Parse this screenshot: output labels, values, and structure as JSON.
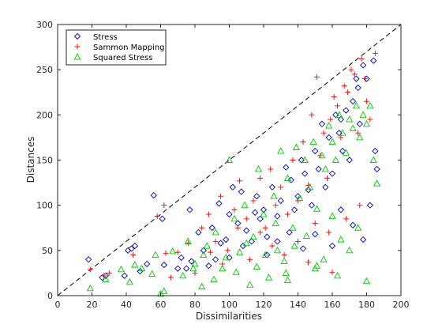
{
  "chart_data": {
    "type": "scatter",
    "xlabel": "Dissimilarities",
    "ylabel": "Distances",
    "xlim": [
      0,
      200
    ],
    "ylim": [
      0,
      300
    ],
    "xticks": [
      0,
      20,
      40,
      60,
      80,
      100,
      120,
      140,
      160,
      180,
      200
    ],
    "yticks": [
      0,
      50,
      100,
      150,
      200,
      250,
      300
    ],
    "grid": false,
    "legend_position": "top-left",
    "reference_line": {
      "style": "dashed",
      "from": [
        0,
        0
      ],
      "to": [
        200,
        200
      ]
    },
    "series": [
      {
        "name": "Stress",
        "marker": "diamond",
        "color": "#0000cc",
        "points": [
          [
            18,
            40
          ],
          [
            26,
            20
          ],
          [
            28,
            22
          ],
          [
            39,
            22
          ],
          [
            41,
            50
          ],
          [
            43,
            52
          ],
          [
            45,
            55
          ],
          [
            48,
            27
          ],
          [
            52,
            35
          ],
          [
            56,
            111
          ],
          [
            61,
            85
          ],
          [
            62,
            34
          ],
          [
            70,
            30
          ],
          [
            72,
            42
          ],
          [
            75,
            30
          ],
          [
            77,
            95
          ],
          [
            78,
            38
          ],
          [
            82,
            70
          ],
          [
            85,
            50
          ],
          [
            90,
            75
          ],
          [
            92,
            40
          ],
          [
            94,
            102
          ],
          [
            98,
            62
          ],
          [
            100,
            90
          ],
          [
            102,
            120
          ],
          [
            105,
            80
          ],
          [
            108,
            55
          ],
          [
            110,
            72
          ],
          [
            113,
            60
          ],
          [
            116,
            110
          ],
          [
            118,
            85
          ],
          [
            120,
            95
          ],
          [
            122,
            65
          ],
          [
            125,
            120
          ],
          [
            128,
            88
          ],
          [
            130,
            105
          ],
          [
            133,
            142
          ],
          [
            136,
            128
          ],
          [
            138,
            95
          ],
          [
            140,
            110
          ],
          [
            142,
            150
          ],
          [
            144,
            135
          ],
          [
            146,
            117
          ],
          [
            148,
            100
          ],
          [
            150,
            160
          ],
          [
            152,
            140
          ],
          [
            154,
            190
          ],
          [
            156,
            120
          ],
          [
            158,
            175
          ],
          [
            160,
            135
          ],
          [
            162,
            200
          ],
          [
            164,
            180
          ],
          [
            165,
            195
          ],
          [
            166,
            160
          ],
          [
            168,
            205
          ],
          [
            170,
            150
          ],
          [
            172,
            215
          ],
          [
            174,
            240
          ],
          [
            175,
            230
          ],
          [
            176,
            190
          ],
          [
            178,
            255
          ],
          [
            180,
            240
          ],
          [
            182,
            100
          ],
          [
            184,
            260
          ],
          [
            185,
            160
          ],
          [
            186,
            140
          ],
          [
            178,
            62
          ],
          [
            172,
            78
          ],
          [
            165,
            95
          ],
          [
            160,
            55
          ],
          [
            150,
            68
          ],
          [
            143,
            52
          ],
          [
            135,
            70
          ],
          [
            128,
            60
          ],
          [
            122,
            45
          ],
          [
            115,
            92
          ],
          [
            107,
            115
          ],
          [
            100,
            42
          ],
          [
            95,
            58
          ],
          [
            88,
            33
          ]
        ]
      },
      {
        "name": "Sammon Mapping",
        "marker": "plus",
        "color": "#ff0000",
        "points": [
          [
            19,
            29
          ],
          [
            27,
            22
          ],
          [
            30,
            25
          ],
          [
            44,
            45
          ],
          [
            58,
            88
          ],
          [
            63,
            47
          ],
          [
            66,
            20
          ],
          [
            70,
            48
          ],
          [
            76,
            58
          ],
          [
            80,
            25
          ],
          [
            84,
            75
          ],
          [
            88,
            90
          ],
          [
            92,
            60
          ],
          [
            95,
            110
          ],
          [
            99,
            50
          ],
          [
            103,
            95
          ],
          [
            106,
            127
          ],
          [
            110,
            85
          ],
          [
            114,
            105
          ],
          [
            118,
            130
          ],
          [
            121,
            75
          ],
          [
            124,
            140
          ],
          [
            127,
            100
          ],
          [
            130,
            120
          ],
          [
            134,
            90
          ],
          [
            137,
            150
          ],
          [
            140,
            105
          ],
          [
            143,
            170
          ],
          [
            146,
            122
          ],
          [
            148,
            200
          ],
          [
            151,
            242
          ],
          [
            153,
            155
          ],
          [
            155,
            180
          ],
          [
            157,
            130
          ],
          [
            159,
            195
          ],
          [
            161,
            220
          ],
          [
            163,
            210
          ],
          [
            165,
            175
          ],
          [
            167,
            232
          ],
          [
            169,
            225
          ],
          [
            171,
            250
          ],
          [
            173,
            245
          ],
          [
            175,
            180
          ],
          [
            177,
            262
          ],
          [
            179,
            240
          ],
          [
            180,
            215
          ],
          [
            182,
            195
          ],
          [
            185,
            268
          ],
          [
            176,
            100
          ],
          [
            168,
            85
          ],
          [
            158,
            70
          ],
          [
            150,
            80
          ],
          [
            140,
            60
          ],
          [
            132,
            45
          ],
          [
            125,
            55
          ],
          [
            118,
            70
          ],
          [
            112,
            40
          ],
          [
            105,
            75
          ],
          [
            96,
            35
          ],
          [
            89,
            48
          ],
          [
            160,
            26
          ],
          [
            146,
            37
          ],
          [
            62,
            100
          ]
        ]
      },
      {
        "name": "Squared Stress",
        "marker": "triangle",
        "color": "#00cc00",
        "points": [
          [
            19,
            8
          ],
          [
            28,
            18
          ],
          [
            37,
            29
          ],
          [
            42,
            15
          ],
          [
            45,
            34
          ],
          [
            49,
            30
          ],
          [
            55,
            24
          ],
          [
            60,
            2
          ],
          [
            62,
            5
          ],
          [
            67,
            49
          ],
          [
            73,
            22
          ],
          [
            76,
            60
          ],
          [
            80,
            35
          ],
          [
            84,
            10
          ],
          [
            87,
            55
          ],
          [
            92,
            70
          ],
          [
            96,
            30
          ],
          [
            100,
            150
          ],
          [
            103,
            85
          ],
          [
            106,
            48
          ],
          [
            109,
            100
          ],
          [
            112,
            12
          ],
          [
            114,
            65
          ],
          [
            117,
            140
          ],
          [
            120,
            90
          ],
          [
            123,
            20
          ],
          [
            126,
            110
          ],
          [
            128,
            50
          ],
          [
            130,
            160
          ],
          [
            132,
            38
          ],
          [
            134,
            130
          ],
          [
            137,
            75
          ],
          [
            139,
            164
          ],
          [
            141,
            108
          ],
          [
            144,
            150
          ],
          [
            147,
            120
          ],
          [
            149,
            170
          ],
          [
            151,
            96
          ],
          [
            154,
            155
          ],
          [
            156,
            140
          ],
          [
            158,
            188
          ],
          [
            160,
            170
          ],
          [
            162,
            150
          ],
          [
            164,
            200
          ],
          [
            166,
            180
          ],
          [
            168,
            158
          ],
          [
            170,
            195
          ],
          [
            172,
            185
          ],
          [
            174,
            210
          ],
          [
            176,
            175
          ],
          [
            178,
            200
          ],
          [
            180,
            190
          ],
          [
            182,
            210
          ],
          [
            184,
            150
          ],
          [
            186,
            124
          ],
          [
            175,
            75
          ],
          [
            170,
            50
          ],
          [
            165,
            62
          ],
          [
            160,
            88
          ],
          [
            155,
            40
          ],
          [
            150,
            30
          ],
          [
            145,
            66
          ],
          [
            138,
            55
          ],
          [
            133,
            25
          ],
          [
            127,
            80
          ],
          [
            121,
            45
          ],
          [
            116,
            32
          ],
          [
            110,
            58
          ],
          [
            104,
            26
          ],
          [
            98,
            42
          ],
          [
            91,
            18
          ],
          [
            85,
            45
          ],
          [
            79,
            30
          ],
          [
            57,
            45
          ],
          [
            134,
            17
          ],
          [
            163,
            22
          ],
          [
            180,
            16
          ],
          [
            151,
            33
          ]
        ]
      }
    ]
  }
}
